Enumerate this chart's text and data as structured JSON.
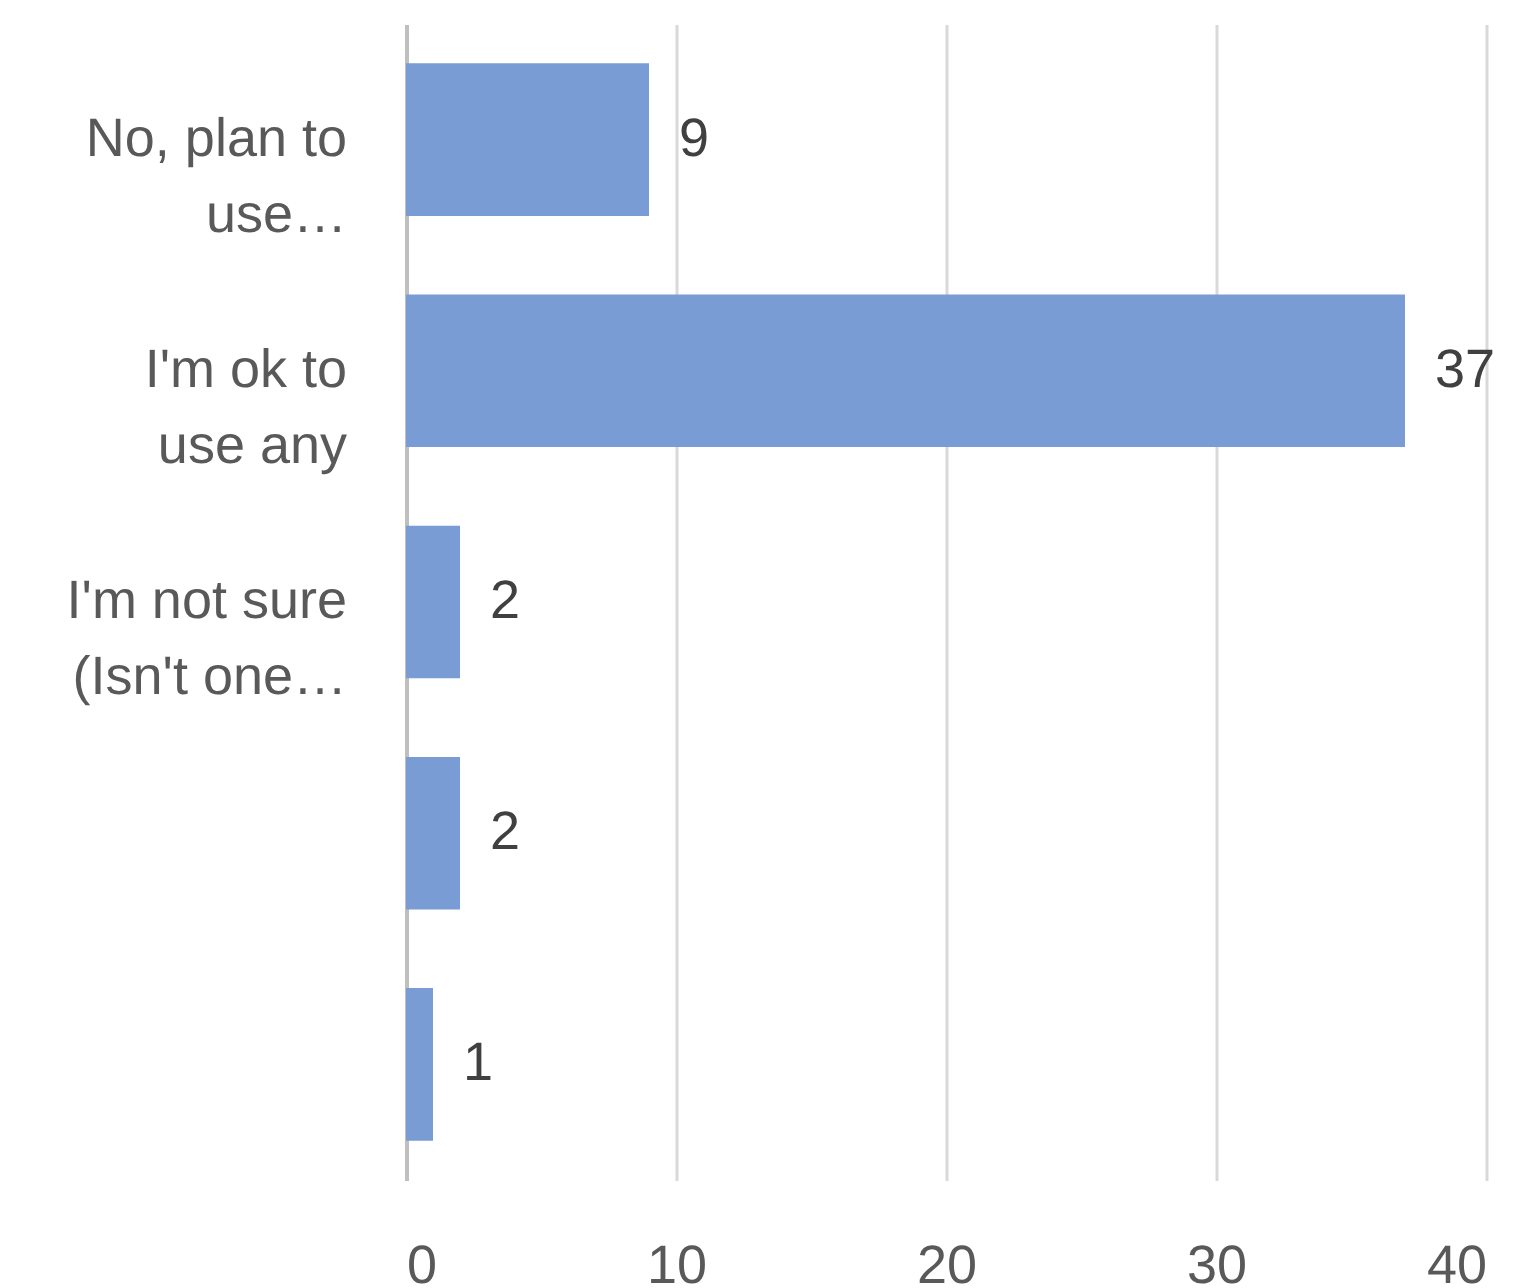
{
  "chart_data": {
    "type": "bar",
    "orientation": "horizontal",
    "categories": [
      "No, plan to use…",
      "I'm ok to use any",
      "I'm not sure (Isn't one…",
      null,
      null
    ],
    "values": [
      9,
      37,
      2,
      2,
      1
    ],
    "color": "#7a9cd5",
    "xlim": [
      0,
      40
    ],
    "xticks": [
      0,
      10,
      20,
      30,
      40
    ],
    "grid": "x",
    "data_labels": true
  }
}
